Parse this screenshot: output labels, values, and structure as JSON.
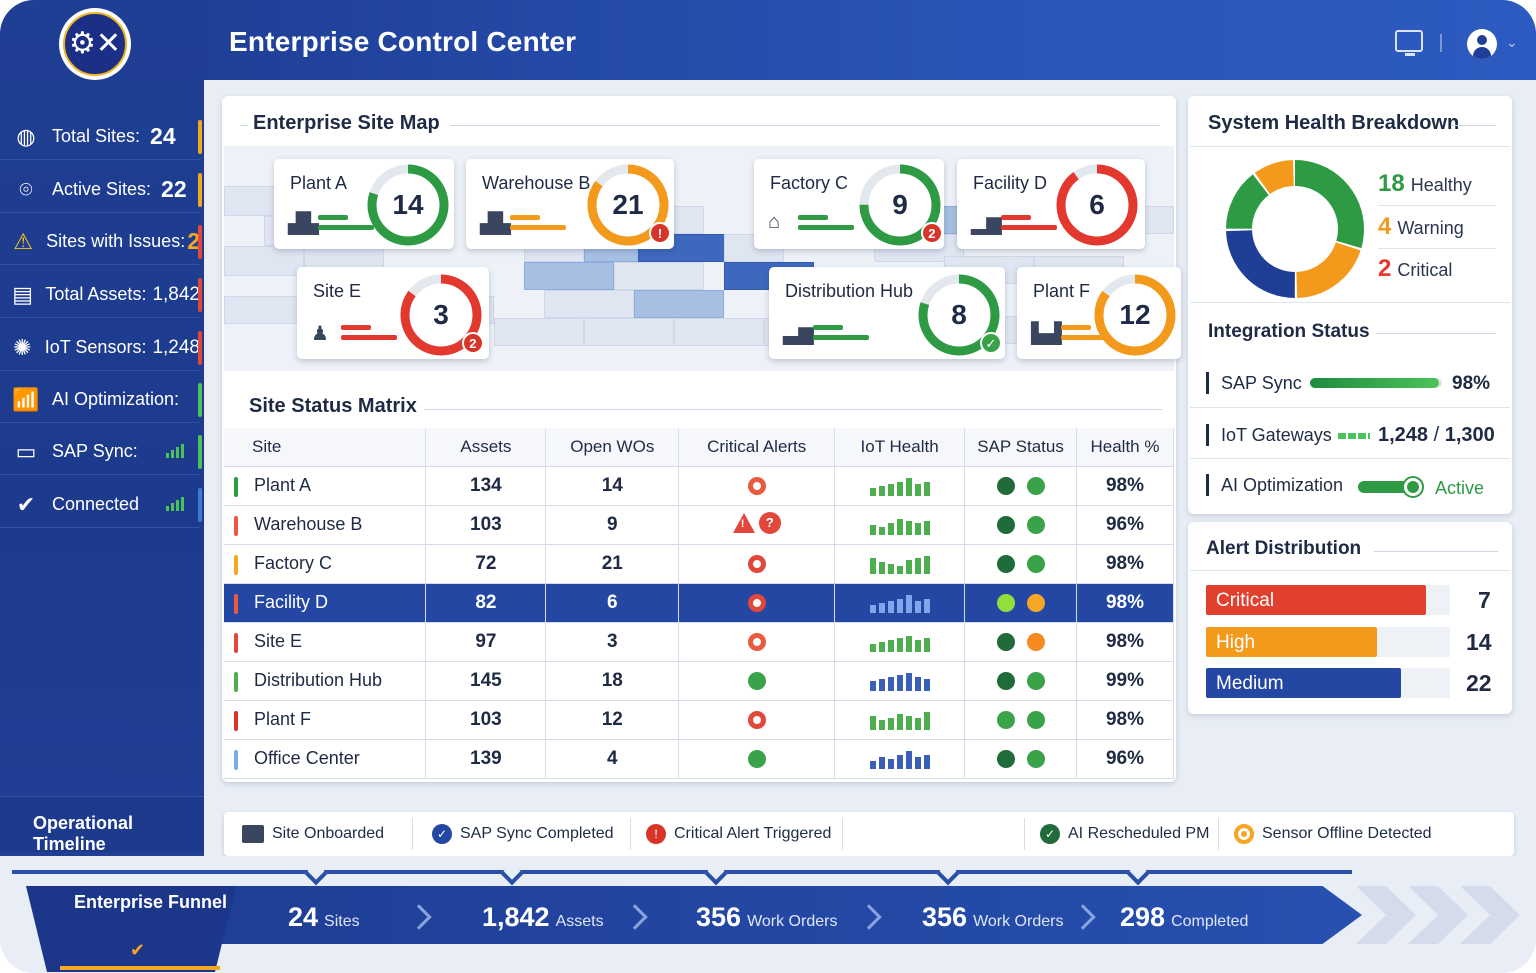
{
  "header": {
    "title": "Enterprise Control Center",
    "icons": [
      "monitor-icon",
      "user-avatar-icon",
      "chevron-down-icon"
    ]
  },
  "sidebar": {
    "logo_icon": "gear-wrench-icon",
    "items": [
      {
        "icon": "globe-icon",
        "label": "Total Sites:",
        "value": "24",
        "edge": "#f5a623"
      },
      {
        "icon": "location-pin-icon",
        "label": "Active Sites:",
        "value": "22",
        "edge": "#f5a623"
      },
      {
        "icon": "warning-icon",
        "label": "Sites with Issues:",
        "value": "2",
        "edge": "#e2473b"
      },
      {
        "icon": "asset-icon",
        "label": "Total Assets:",
        "value": "1,842",
        "edge": "#e2473b"
      },
      {
        "icon": "sensor-icon",
        "label": "IoT Sensors:",
        "value": "1,248",
        "edge": "#e2473b"
      },
      {
        "icon": "chart-icon",
        "label": "AI Optimization:",
        "value": "",
        "edge": "#4cc35a"
      },
      {
        "icon": "sap-icon",
        "label": "SAP Sync:",
        "value": "",
        "edge": "#4cc35a"
      },
      {
        "icon": "check-circle-icon",
        "label": "Connected",
        "value": "",
        "edge": "#3c7ad9"
      }
    ],
    "timeline_label": "Operational Timeline"
  },
  "site_map": {
    "title": "Enterprise Site Map",
    "sites": [
      {
        "name": "Plant A",
        "value": "14",
        "color": "#2e9a44",
        "fill": 0.8,
        "badge": ""
      },
      {
        "name": "Warehouse B",
        "value": "21",
        "color": "#f39a1c",
        "fill": 0.85,
        "badge": "!"
      },
      {
        "name": "Factory C",
        "value": "9",
        "color": "#2e9a44",
        "fill": 0.75,
        "badge": "2"
      },
      {
        "name": "Facility D",
        "value": "6",
        "color": "#e2382e",
        "fill": 0.9,
        "badge": ""
      },
      {
        "name": "Site E",
        "value": "3",
        "color": "#e2382e",
        "fill": 0.85,
        "badge": "2"
      },
      {
        "name": "Distribution Hub",
        "value": "8",
        "color": "#2e9a44",
        "fill": 0.8,
        "badge": "✓"
      },
      {
        "name": "Plant F",
        "value": "12",
        "color": "#f39a1c",
        "fill": 0.85,
        "badge": ""
      }
    ]
  },
  "matrix": {
    "title": "Site Status Matrix",
    "columns": [
      "Site",
      "Assets",
      "Open WOs",
      "Critical Alerts",
      "IoT Health",
      "SAP Status",
      "Health %"
    ],
    "rows": [
      {
        "site": "Plant A",
        "assets": "134",
        "wos": "14",
        "alert": "ring-redo",
        "health": "98%",
        "mark": "#2e9a44",
        "sap": [
          "#1f6b3a",
          "#3aa34a"
        ],
        "iot": "#4cae4c"
      },
      {
        "site": "Warehouse B",
        "assets": "103",
        "wos": "9",
        "alert": "pair",
        "health": "96%",
        "mark": "#ea5a3f",
        "sap": [
          "#1f6b3a",
          "#3aa34a"
        ],
        "iot": "#4cae4c"
      },
      {
        "site": "Factory C",
        "assets": "72",
        "wos": "21",
        "alert": "ring-red",
        "health": "98%",
        "mark": "#f5a623",
        "sap": [
          "#1f6b3a",
          "#3aa34a"
        ],
        "iot": "#4cae4c"
      },
      {
        "site": "Facility D",
        "assets": "82",
        "wos": "6",
        "alert": "ring-red",
        "health": "98%",
        "mark": "#ea5a3f",
        "sap": [
          "#8fe03a",
          "#f5a623"
        ],
        "iot": "#7ea7ec",
        "selected": true
      },
      {
        "site": "Site E",
        "assets": "97",
        "wos": "3",
        "alert": "ring-redo",
        "health": "98%",
        "mark": "#e2473b",
        "sap": [
          "#1f6b3a",
          "#f58a23"
        ],
        "iot": "#4cae4c"
      },
      {
        "site": "Distribution Hub",
        "assets": "145",
        "wos": "18",
        "alert": "green",
        "health": "99%",
        "mark": "#4cae4c",
        "sap": [
          "#1f6b3a",
          "#3aa34a"
        ],
        "iot": "#3a5fb8"
      },
      {
        "site": "Plant F",
        "assets": "103",
        "wos": "12",
        "alert": "ring-red",
        "health": "98%",
        "mark": "#d8352a",
        "sap": [
          "#3aa34a",
          "#3aa34a"
        ],
        "iot": "#4cae4c"
      },
      {
        "site": "Office Center",
        "assets": "139",
        "wos": "4",
        "alert": "green",
        "health": "96%",
        "mark": "#7ea7ec",
        "sap": [
          "#1f6b3a",
          "#3aa34a"
        ],
        "iot": "#3a5fb8"
      }
    ]
  },
  "health": {
    "title": "System Health Breakdown",
    "items": [
      {
        "num": "18",
        "label": "Healthy",
        "color": "#2e9a44",
        "value": 18
      },
      {
        "num": "4",
        "label": "Warning",
        "color": "#f39a1c",
        "value": 4
      },
      {
        "num": "2",
        "label": "Critical",
        "color": "#e2382e",
        "value": 2
      }
    ]
  },
  "integration": {
    "title": "Integration Status",
    "sap_label": "SAP Sync",
    "sap_value": "98%",
    "sap_fill": 0.98,
    "iot_label": "IoT Gateways",
    "iot_value": "1,248",
    "iot_sep": "/",
    "iot_total": "1,300",
    "ai_label": "AI Optimization",
    "ai_value": "Active"
  },
  "alerts": {
    "title": "Alert Distribution",
    "items": [
      {
        "label": "Critical",
        "count": "7",
        "color": "#e2402f",
        "fill": 0.9
      },
      {
        "label": "High",
        "count": "14",
        "color": "#f39a1c",
        "fill": 0.7
      },
      {
        "label": "Medium",
        "count": "22",
        "color": "#2447a3",
        "fill": 0.8
      }
    ]
  },
  "timeline": {
    "events": [
      {
        "label": "Site Onboarded",
        "icon": "building-icon"
      },
      {
        "label": "SAP Sync Completed",
        "icon": "check-badge-icon"
      },
      {
        "label": "Critical Alert Triggered",
        "icon": "alert-shield-icon"
      },
      {
        "label": "AI Rescheduled PM",
        "icon": "shield-check-icon"
      },
      {
        "label": "Sensor Offline Detected",
        "icon": "sensor-offline-icon"
      }
    ]
  },
  "funnel": {
    "title": "Enterprise Funnel",
    "stages": [
      {
        "value": "24",
        "unit": "Sites"
      },
      {
        "value": "1,842",
        "unit": "Assets"
      },
      {
        "value": "356",
        "unit": "Work Orders"
      },
      {
        "value": "356",
        "unit": "Work Orders"
      },
      {
        "value": "298",
        "unit": "Completed"
      }
    ]
  }
}
